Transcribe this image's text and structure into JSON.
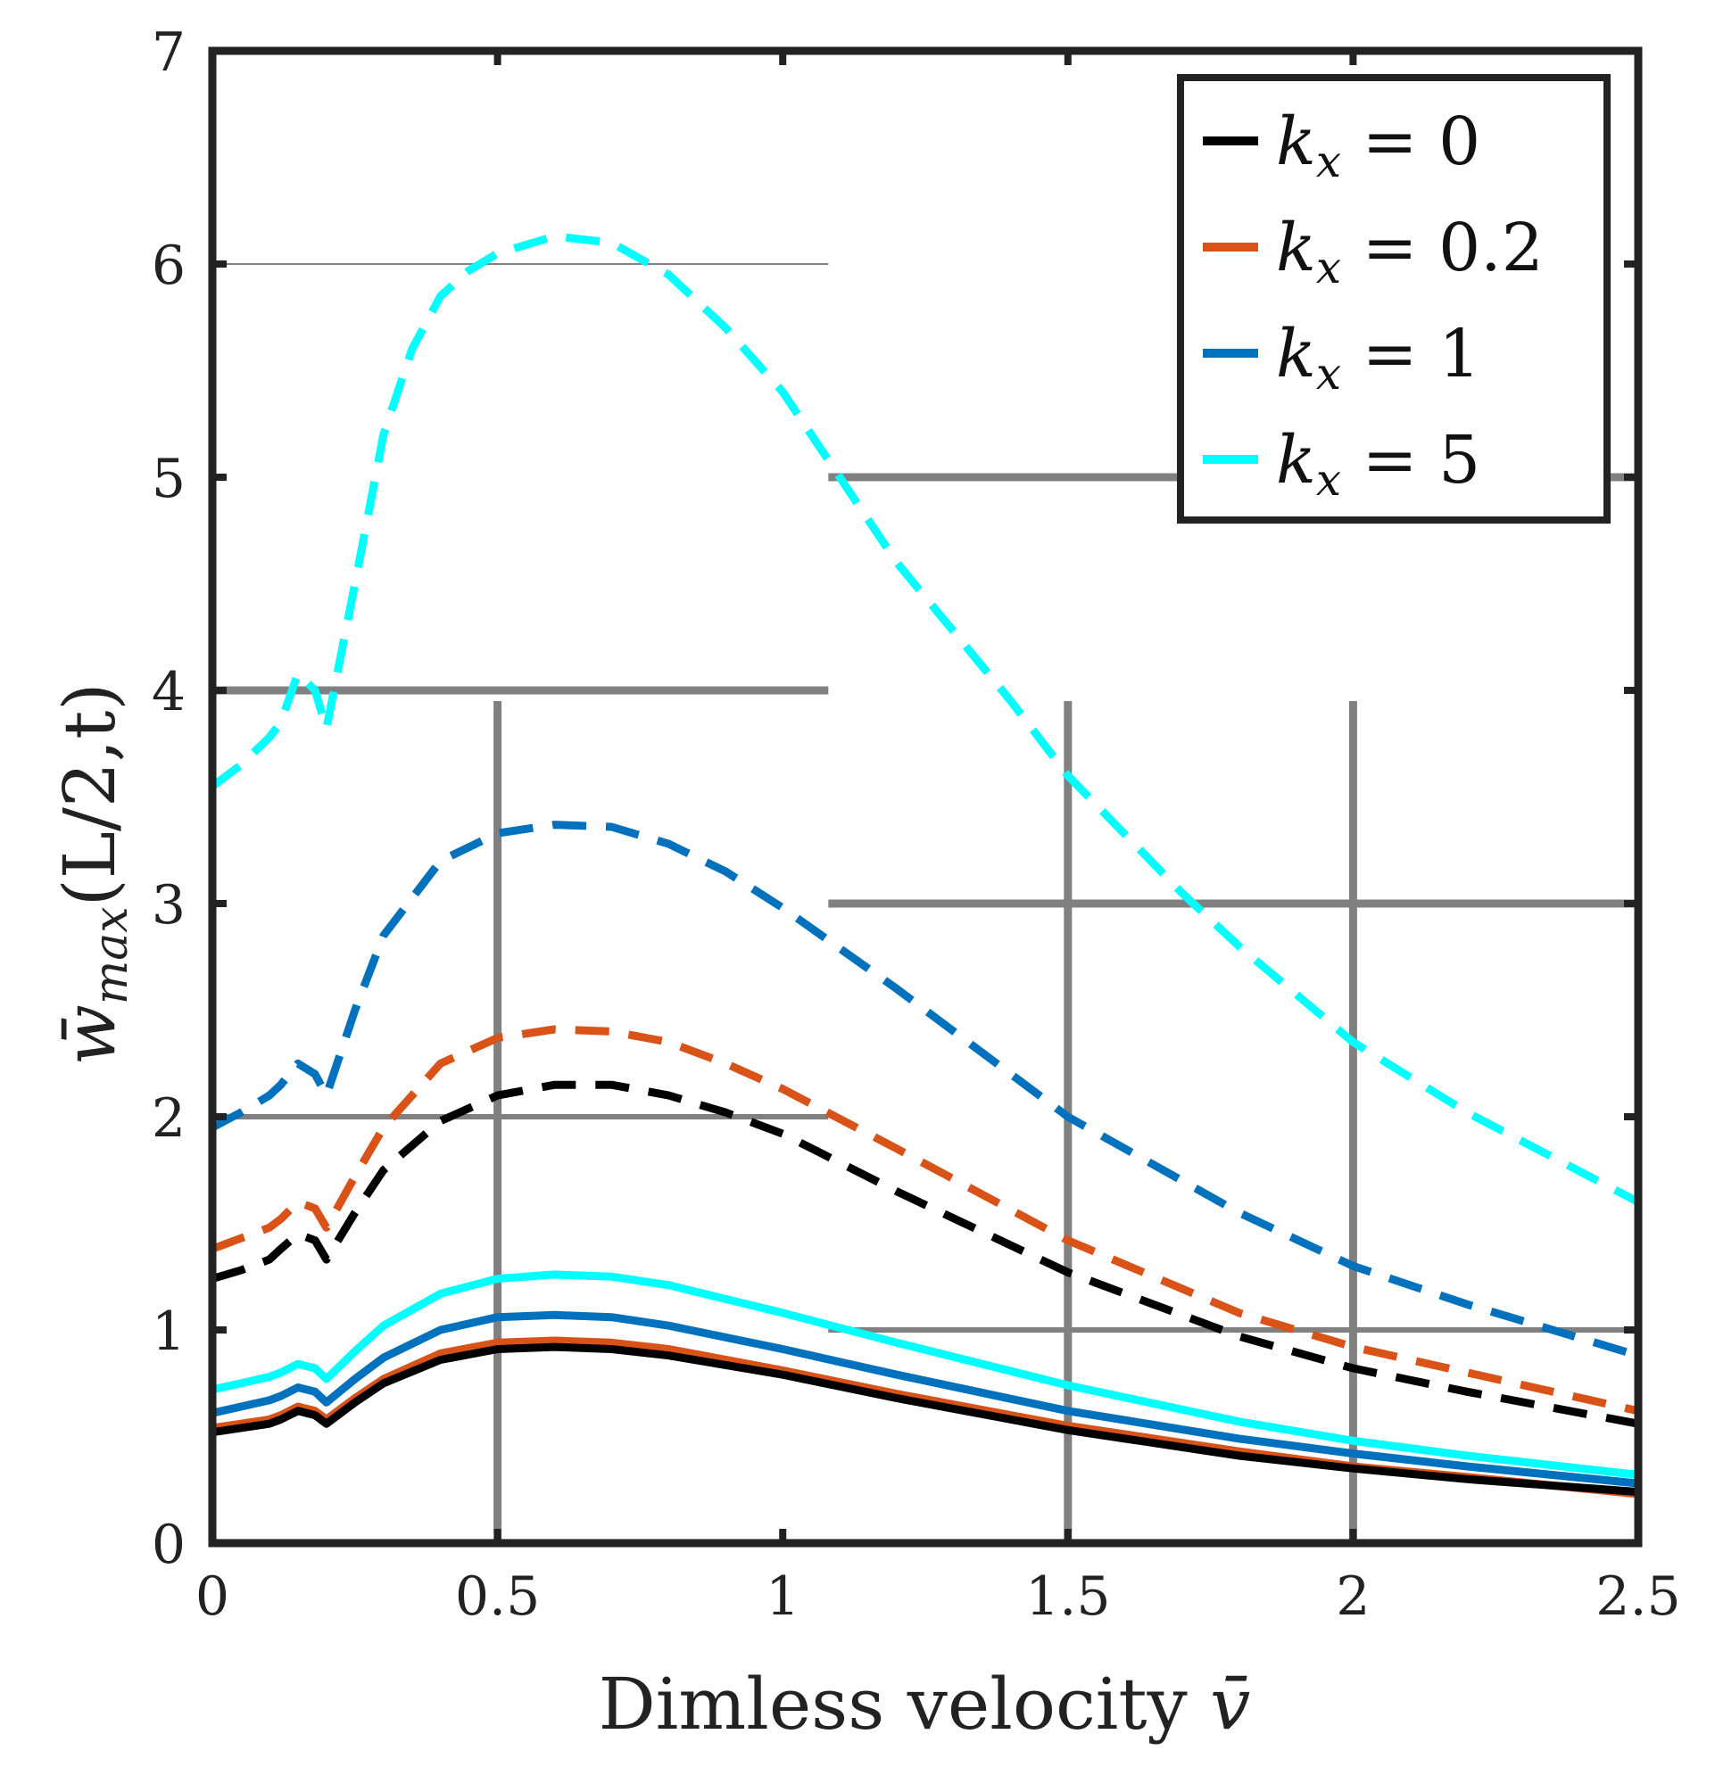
{
  "chart_data": {
    "type": "line",
    "title": "",
    "xlabel": "Dimless velocity ",
    "xlabel_symbol": "v̄",
    "ylabel_symbol": "w̄",
    "ylabel_sub": "max",
    "ylabel_args": "(L/2,t)",
    "xlim": [
      0,
      2.5
    ],
    "ylim": [
      0,
      7
    ],
    "xticks": [
      "0",
      "0.5",
      "1",
      "1.5",
      "2",
      "2.5"
    ],
    "yticks": [
      "0",
      "1",
      "2",
      "3",
      "4",
      "5",
      "6",
      "7"
    ],
    "legend_position": "top-right",
    "colors": {
      "k0": "#000000",
      "k02": "#D95319",
      "k1": "#0072BD",
      "k5": "#00FFFF",
      "grid": "#808080"
    },
    "legend": [
      {
        "key": "k0",
        "var": "k",
        "sub": "x",
        "eq": " = 0"
      },
      {
        "key": "k02",
        "var": "k",
        "sub": "x",
        "eq": " = 0.2"
      },
      {
        "key": "k1",
        "var": "k",
        "sub": "x",
        "eq": " = 1"
      },
      {
        "key": "k5",
        "var": "k",
        "sub": "x",
        "eq": " = 5"
      }
    ],
    "series": [
      {
        "name": "k_x = 0 (solid)",
        "color_key": "k0",
        "style": "solid",
        "x": [
          0,
          0.05,
          0.1,
          0.12,
          0.15,
          0.18,
          0.2,
          0.25,
          0.3,
          0.4,
          0.5,
          0.6,
          0.7,
          0.8,
          1.0,
          1.2,
          1.5,
          1.8,
          2.0,
          2.2,
          2.5
        ],
        "y": [
          0.52,
          0.54,
          0.56,
          0.58,
          0.62,
          0.6,
          0.56,
          0.66,
          0.75,
          0.86,
          0.91,
          0.92,
          0.91,
          0.88,
          0.79,
          0.68,
          0.53,
          0.41,
          0.35,
          0.3,
          0.24
        ]
      },
      {
        "name": "k_x = 0.2 (solid)",
        "color_key": "k02",
        "style": "solid",
        "x": [
          0,
          0.05,
          0.1,
          0.12,
          0.15,
          0.18,
          0.2,
          0.25,
          0.3,
          0.4,
          0.5,
          0.6,
          0.7,
          0.8,
          1.0,
          1.2,
          1.5,
          1.8,
          2.0,
          2.2,
          2.5
        ],
        "y": [
          0.54,
          0.56,
          0.58,
          0.6,
          0.64,
          0.62,
          0.58,
          0.68,
          0.77,
          0.89,
          0.94,
          0.95,
          0.94,
          0.91,
          0.81,
          0.7,
          0.55,
          0.43,
          0.36,
          0.31,
          0.23
        ]
      },
      {
        "name": "k_x = 1 (solid)",
        "color_key": "k1",
        "style": "solid",
        "x": [
          0,
          0.05,
          0.1,
          0.12,
          0.15,
          0.18,
          0.2,
          0.25,
          0.3,
          0.4,
          0.5,
          0.6,
          0.7,
          0.8,
          1.0,
          1.2,
          1.5,
          1.8,
          2.0,
          2.2,
          2.5
        ],
        "y": [
          0.61,
          0.64,
          0.67,
          0.69,
          0.73,
          0.71,
          0.66,
          0.77,
          0.87,
          1.0,
          1.06,
          1.07,
          1.06,
          1.02,
          0.91,
          0.79,
          0.62,
          0.49,
          0.42,
          0.36,
          0.28
        ]
      },
      {
        "name": "k_x = 5 (solid)",
        "color_key": "k5",
        "style": "solid",
        "x": [
          0,
          0.05,
          0.1,
          0.12,
          0.15,
          0.18,
          0.2,
          0.25,
          0.3,
          0.4,
          0.5,
          0.6,
          0.7,
          0.8,
          1.0,
          1.2,
          1.5,
          1.8,
          2.0,
          2.2,
          2.5
        ],
        "y": [
          0.72,
          0.75,
          0.78,
          0.8,
          0.84,
          0.82,
          0.77,
          0.9,
          1.02,
          1.17,
          1.24,
          1.26,
          1.25,
          1.21,
          1.08,
          0.94,
          0.74,
          0.57,
          0.48,
          0.41,
          0.32
        ]
      },
      {
        "name": "k_x = 0 (dashed)",
        "color_key": "k0",
        "style": "dashed",
        "x": [
          0,
          0.05,
          0.1,
          0.12,
          0.15,
          0.18,
          0.2,
          0.25,
          0.3,
          0.4,
          0.5,
          0.6,
          0.7,
          0.8,
          0.9,
          1.0,
          1.2,
          1.5,
          1.8,
          2.0,
          2.2,
          2.5
        ],
        "y": [
          1.24,
          1.28,
          1.33,
          1.38,
          1.45,
          1.42,
          1.33,
          1.55,
          1.75,
          1.98,
          2.1,
          2.15,
          2.15,
          2.1,
          2.02,
          1.92,
          1.65,
          1.27,
          0.97,
          0.82,
          0.71,
          0.56
        ]
      },
      {
        "name": "k_x = 0.2 (dashed)",
        "color_key": "k02",
        "style": "dashed",
        "x": [
          0,
          0.05,
          0.1,
          0.12,
          0.15,
          0.18,
          0.2,
          0.25,
          0.3,
          0.4,
          0.5,
          0.6,
          0.7,
          0.8,
          0.9,
          1.0,
          1.2,
          1.5,
          1.8,
          2.0,
          2.2,
          2.5
        ],
        "y": [
          1.38,
          1.43,
          1.48,
          1.52,
          1.6,
          1.57,
          1.48,
          1.72,
          1.95,
          2.25,
          2.37,
          2.41,
          2.4,
          2.35,
          2.25,
          2.13,
          1.85,
          1.42,
          1.08,
          0.92,
          0.8,
          0.62
        ]
      },
      {
        "name": "k_x = 1 (dashed)",
        "color_key": "k1",
        "style": "dashed",
        "x": [
          0,
          0.05,
          0.1,
          0.12,
          0.15,
          0.18,
          0.2,
          0.25,
          0.3,
          0.4,
          0.5,
          0.6,
          0.7,
          0.8,
          0.9,
          1.0,
          1.2,
          1.5,
          1.8,
          2.0,
          2.2,
          2.5
        ],
        "y": [
          1.95,
          2.02,
          2.1,
          2.15,
          2.25,
          2.2,
          2.1,
          2.5,
          2.85,
          3.2,
          3.33,
          3.37,
          3.36,
          3.28,
          3.15,
          2.98,
          2.6,
          2.0,
          1.55,
          1.3,
          1.12,
          0.88
        ]
      },
      {
        "name": "k_x = 5 (dashed)",
        "color_key": "k5",
        "style": "dashed",
        "x": [
          0,
          0.05,
          0.1,
          0.12,
          0.15,
          0.18,
          0.2,
          0.25,
          0.3,
          0.35,
          0.4,
          0.45,
          0.5,
          0.6,
          0.7,
          0.8,
          0.9,
          1.0,
          1.1,
          1.2,
          1.4,
          1.5,
          1.7,
          1.8,
          2.0,
          2.2,
          2.5
        ],
        "y": [
          3.55,
          3.65,
          3.78,
          3.85,
          4.08,
          4.0,
          3.82,
          4.5,
          5.2,
          5.6,
          5.85,
          5.97,
          6.05,
          6.13,
          6.1,
          5.95,
          5.7,
          5.4,
          5.0,
          4.6,
          3.95,
          3.6,
          3.05,
          2.8,
          2.35,
          2.02,
          1.6
        ]
      }
    ]
  }
}
